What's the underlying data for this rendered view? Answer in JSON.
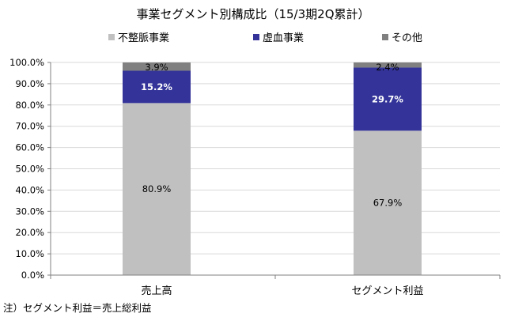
{
  "chart_data": {
    "type": "bar",
    "stacked": true,
    "percent_stacked": true,
    "title": "事業セグメント別構成比（15/3期2Q累計）",
    "categories": [
      "売上高",
      "セグメント利益"
    ],
    "series": [
      {
        "name": "不整脈事業",
        "values": [
          80.9,
          67.9
        ],
        "labels": [
          "80.9%",
          "67.9%"
        ],
        "color": "#c0c0c0"
      },
      {
        "name": "虚血事業",
        "values": [
          15.2,
          29.7
        ],
        "labels": [
          "15.2%",
          "29.7%"
        ],
        "color": "#333399"
      },
      {
        "name": "その他",
        "values": [
          3.9,
          2.4
        ],
        "labels": [
          "3.9%",
          "2.4%"
        ],
        "color": "#808080"
      }
    ],
    "y_ticks": [
      "0.0%",
      "10.0%",
      "20.0%",
      "30.0%",
      "40.0%",
      "50.0%",
      "60.0%",
      "70.0%",
      "80.0%",
      "90.0%",
      "100.0%"
    ],
    "ylim": [
      0,
      100
    ],
    "grid": true,
    "legend_position": "top",
    "note": "注）セグメント利益＝売上総利益"
  }
}
